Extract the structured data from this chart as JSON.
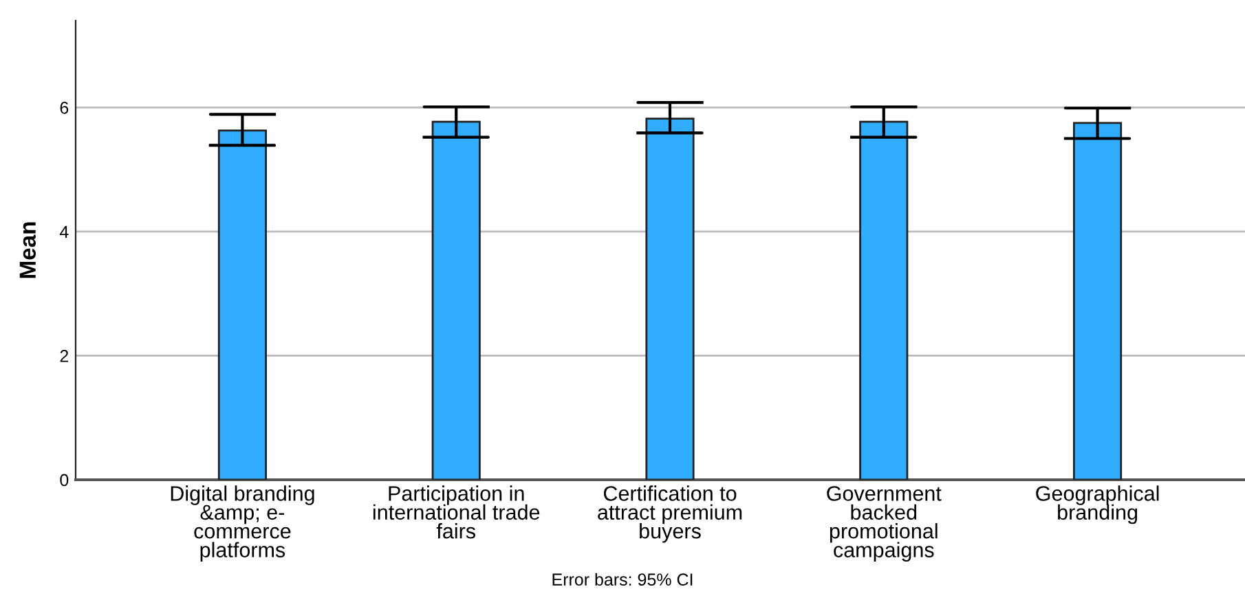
{
  "chart_data": {
    "type": "bar",
    "ylabel": "Mean",
    "categories": [
      "Digital branding\n&amp; e-\ncommerce\nplatforms",
      "Participation in\ninternational trade\nfairs",
      "Certification to\nattract premium\nbuyers",
      "Government\nbacked\npromotional\ncampaigns",
      "Geographical\nbranding"
    ],
    "values": [
      5.63,
      5.77,
      5.82,
      5.77,
      5.75
    ],
    "errors": [
      [
        5.39,
        5.89
      ],
      [
        5.52,
        6.01
      ],
      [
        5.59,
        6.08
      ],
      [
        5.52,
        6.01
      ],
      [
        5.5,
        5.99
      ]
    ],
    "color": "#31adff",
    "ylim": [
      0,
      7.4
    ],
    "yticks": [
      0,
      2,
      4,
      6
    ],
    "grid": "y",
    "annotations": [
      "Error bars: 95% CI"
    ]
  }
}
